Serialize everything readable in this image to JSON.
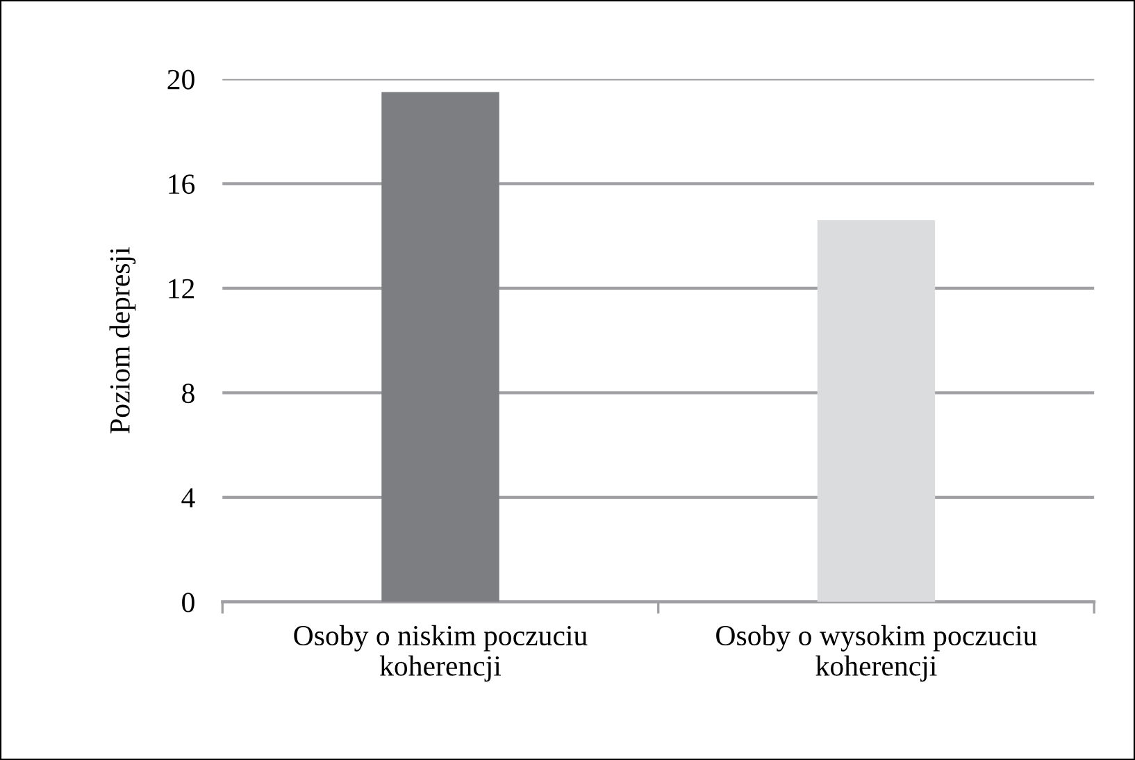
{
  "chart_data": {
    "type": "bar",
    "ylabel": "Poziom depresji",
    "categories": [
      "Osoby o niskim poczuciu\nkoherencji",
      "Osoby o wysokim poczuciu\nkoherencji"
    ],
    "values": [
      19.5,
      14.6
    ],
    "colors": [
      "#7d7e82",
      "#dbdcde"
    ],
    "ylim": [
      0,
      20
    ],
    "yticks": [
      0,
      4,
      8,
      12,
      16,
      20
    ],
    "grid": "y",
    "legend": false
  }
}
